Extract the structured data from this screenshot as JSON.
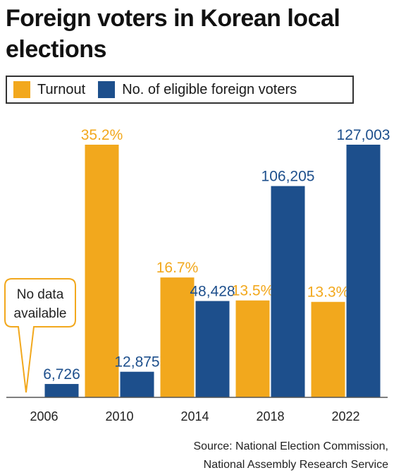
{
  "chart_data": {
    "type": "bar",
    "title": "Foreign voters in Korean local elections",
    "categories": [
      "2006",
      "2010",
      "2014",
      "2018",
      "2022"
    ],
    "series": [
      {
        "name": "Turnout",
        "values": [
          null,
          35.2,
          16.7,
          13.5,
          13.3
        ],
        "labels": [
          "",
          "35.2%",
          "16.7%",
          "13.5%",
          "13.3%"
        ],
        "color": "#f2a81d"
      },
      {
        "name": "No. of eligible foreign voters",
        "values": [
          6726,
          12875,
          48428,
          106205,
          127003
        ],
        "labels": [
          "6,726",
          "12,875",
          "48,428",
          "106,205",
          "127,003"
        ],
        "color": "#1d4f8c"
      }
    ],
    "annotation": "No data available",
    "source_lines": [
      "Source: National Election Commission,",
      "National Assembly Research Service"
    ]
  }
}
